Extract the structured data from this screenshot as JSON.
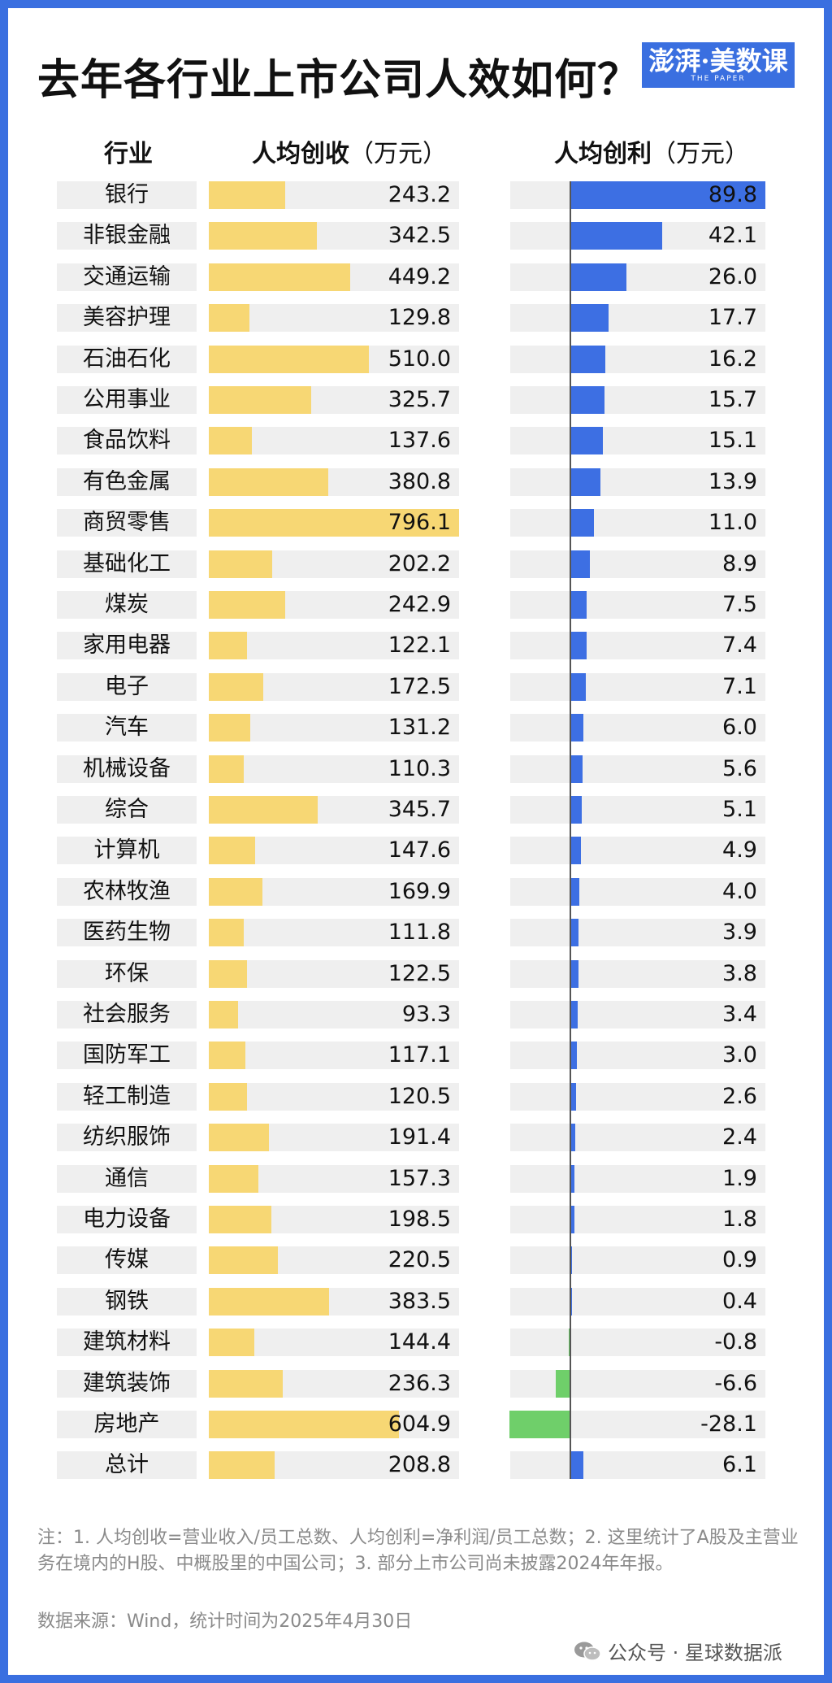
{
  "title": "去年各行业上市公司人效如何？",
  "logo": {
    "main": "澎湃·美数课",
    "sub": "THE PAPER"
  },
  "headers": {
    "industry": "行业",
    "revenue": "人均创收",
    "revenue_unit": "（万元）",
    "profit": "人均创利",
    "profit_unit": "（万元）"
  },
  "colors": {
    "revenue_bar": "#f7d774",
    "profit_pos": "#3d6fe3",
    "profit_neg": "#6fcf6a",
    "row_bg": "#efefef",
    "border": "#3a6fe0"
  },
  "chart_data": {
    "type": "bar",
    "categories": [
      "银行",
      "非银金融",
      "交通运输",
      "美容护理",
      "石油石化",
      "公用事业",
      "食品饮料",
      "有色金属",
      "商贸零售",
      "基础化工",
      "煤炭",
      "家用电器",
      "电子",
      "汽车",
      "机械设备",
      "综合",
      "计算机",
      "农林牧渔",
      "医药生物",
      "环保",
      "社会服务",
      "国防军工",
      "轻工制造",
      "纺织服饰",
      "通信",
      "电力设备",
      "传媒",
      "钢铁",
      "建筑材料",
      "建筑装饰",
      "房地产",
      "总计"
    ],
    "series": [
      {
        "name": "人均创收（万元）",
        "values": [
          243.2,
          342.5,
          449.2,
          129.8,
          510.0,
          325.7,
          137.6,
          380.8,
          796.1,
          202.2,
          242.9,
          122.1,
          172.5,
          131.2,
          110.3,
          345.7,
          147.6,
          169.9,
          111.8,
          122.5,
          93.3,
          117.1,
          120.5,
          191.4,
          157.3,
          198.5,
          220.5,
          383.5,
          144.4,
          236.3,
          604.9,
          208.8
        ]
      },
      {
        "name": "人均创利（万元）",
        "values": [
          89.8,
          42.1,
          26.0,
          17.7,
          16.2,
          15.7,
          15.1,
          13.9,
          11.0,
          8.9,
          7.5,
          7.4,
          7.1,
          6.0,
          5.6,
          5.1,
          4.9,
          4.0,
          3.9,
          3.8,
          3.4,
          3.0,
          2.6,
          2.4,
          1.9,
          1.8,
          0.9,
          0.4,
          -0.8,
          -6.6,
          -28.1,
          6.1
        ]
      }
    ],
    "revenue_display": [
      "243.2",
      "342.5",
      "449.2",
      "129.8",
      "510.0",
      "325.7",
      "137.6",
      "380.8",
      "796.1",
      "202.2",
      "242.9",
      "122.1",
      "172.5",
      "131.2",
      "110.3",
      "345.7",
      "147.6",
      "169.9",
      "111.8",
      "122.5",
      "93.3",
      "117.1",
      "120.5",
      "191.4",
      "157.3",
      "198.5",
      "220.5",
      "383.5",
      "144.4",
      "236.3",
      "604.9",
      "208.8"
    ],
    "profit_display": [
      "89.8",
      "42.1",
      "26.0",
      "17.7",
      "16.2",
      "15.7",
      "15.1",
      "13.9",
      "11.0",
      "8.9",
      "7.5",
      "7.4",
      "7.1",
      "6.0",
      "5.6",
      "5.1",
      "4.9",
      "4.0",
      "3.9",
      "3.8",
      "3.4",
      "3.0",
      "2.6",
      "2.4",
      "1.9",
      "1.8",
      "0.9",
      "0.4",
      "-0.8",
      "-6.6",
      "-28.1",
      "6.1"
    ],
    "revenue_xlim": [
      0,
      796.1
    ],
    "profit_xlim": [
      -28.1,
      89.8
    ],
    "grid": false
  },
  "note": "注：1. 人均创收=营业收入/员工总数、人均创利=净利润/员工总数；2. 这里统计了A股及主营业务在境内的H股、中概股里的中国公司；3.  部分上市公司尚未披露2024年年报。",
  "source": "数据来源：Wind，统计时间为2025年4月30日",
  "watermark": "公众号 · 星球数据派"
}
